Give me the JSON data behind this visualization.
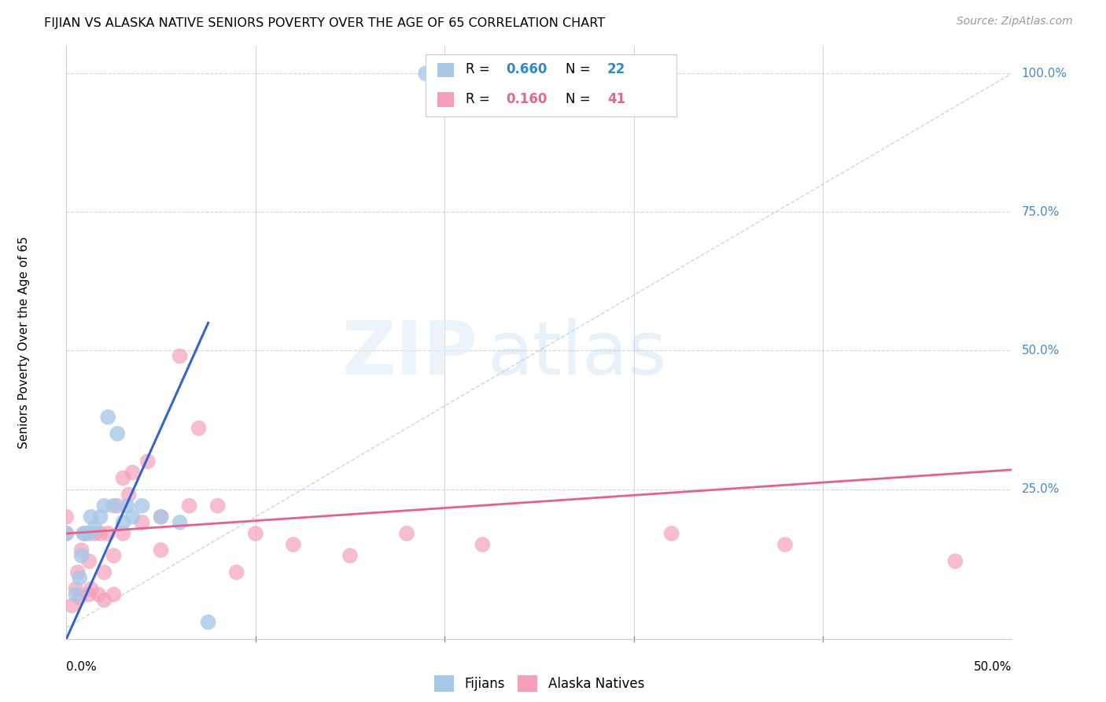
{
  "title": "FIJIAN VS ALASKA NATIVE SENIORS POVERTY OVER THE AGE OF 65 CORRELATION CHART",
  "source": "Source: ZipAtlas.com",
  "ylabel": "Seniors Poverty Over the Age of 65",
  "right_yticks": [
    "100.0%",
    "75.0%",
    "50.0%",
    "25.0%"
  ],
  "right_ytick_vals": [
    1.0,
    0.75,
    0.5,
    0.25
  ],
  "xlim": [
    0.0,
    0.5
  ],
  "ylim": [
    -0.02,
    1.05
  ],
  "fijian_color": "#a8c8e8",
  "alaska_color": "#f4a0b8",
  "fijian_line_color": "#3366cc",
  "alaska_line_color": "#e8608a",
  "diagonal_color": "#c0ccd8",
  "fijian_x": [
    0.0,
    0.005,
    0.007,
    0.008,
    0.009,
    0.01,
    0.012,
    0.013,
    0.015,
    0.018,
    0.02,
    0.022,
    0.025,
    0.027,
    0.03,
    0.032,
    0.035,
    0.04,
    0.05,
    0.06,
    0.075,
    0.19
  ],
  "fijian_y": [
    0.17,
    0.06,
    0.09,
    0.13,
    0.17,
    0.17,
    0.17,
    0.2,
    0.18,
    0.2,
    0.22,
    0.38,
    0.22,
    0.35,
    0.19,
    0.22,
    0.2,
    0.22,
    0.2,
    0.19,
    0.01,
    1.0
  ],
  "alaska_x": [
    0.0,
    0.0,
    0.003,
    0.005,
    0.006,
    0.007,
    0.008,
    0.01,
    0.012,
    0.012,
    0.013,
    0.015,
    0.017,
    0.018,
    0.02,
    0.02,
    0.022,
    0.025,
    0.025,
    0.027,
    0.03,
    0.03,
    0.033,
    0.035,
    0.04,
    0.043,
    0.05,
    0.05,
    0.06,
    0.065,
    0.07,
    0.08,
    0.09,
    0.1,
    0.12,
    0.15,
    0.18,
    0.22,
    0.32,
    0.38,
    0.47
  ],
  "alaska_y": [
    0.17,
    0.2,
    0.04,
    0.07,
    0.1,
    0.055,
    0.14,
    0.17,
    0.06,
    0.12,
    0.07,
    0.17,
    0.06,
    0.17,
    0.05,
    0.1,
    0.17,
    0.06,
    0.13,
    0.22,
    0.17,
    0.27,
    0.24,
    0.28,
    0.19,
    0.3,
    0.2,
    0.14,
    0.49,
    0.22,
    0.36,
    0.22,
    0.1,
    0.17,
    0.15,
    0.13,
    0.17,
    0.15,
    0.17,
    0.15,
    0.12
  ],
  "fijian_line_x": [
    0.0,
    0.075
  ],
  "fijian_line_y": [
    -0.02,
    0.55
  ],
  "alaska_line_x": [
    0.0,
    0.5
  ],
  "alaska_line_y": [
    0.17,
    0.285
  ]
}
